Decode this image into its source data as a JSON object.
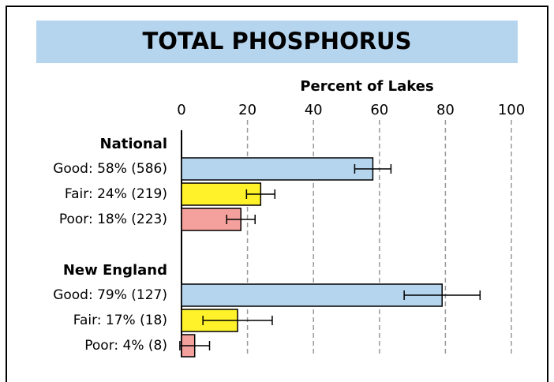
{
  "chart_data": {
    "type": "bar",
    "orientation": "horizontal",
    "title": "TOTAL PHOSPHORUS",
    "xlabel": "Percent of Lakes",
    "xlim": [
      0,
      100
    ],
    "xticks": [
      0,
      20,
      40,
      60,
      80,
      100
    ],
    "grid": true,
    "colors": [
      "#b5d5ef",
      "#fff22a",
      "#f4a09c"
    ],
    "groups": [
      {
        "name": "National",
        "categories": [
          "Good: 58% (586)",
          "Fair: 24% (219)",
          "Poor: 18% (223)"
        ],
        "values": [
          58,
          24,
          18
        ],
        "errors": [
          5.5,
          4.3,
          4.3
        ]
      },
      {
        "name": "New England",
        "categories": [
          "Good: 79% (127)",
          "Fair: 17% (18)",
          "Poor: 4% (8)"
        ],
        "values": [
          79,
          17,
          4
        ],
        "errors": [
          11.5,
          10.5,
          4.5
        ]
      }
    ]
  }
}
